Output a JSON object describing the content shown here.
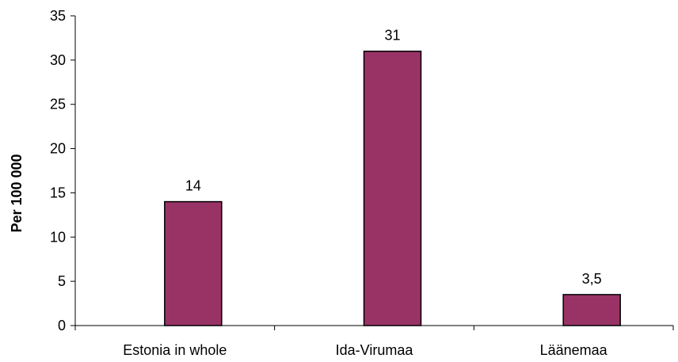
{
  "chart_data": {
    "type": "bar",
    "categories": [
      "Estonia in whole",
      "Ida-Virumaa",
      "Läänemaa"
    ],
    "values": [
      14,
      31,
      3.5
    ],
    "data_labels": [
      "14",
      "31",
      "3,5"
    ],
    "title": "",
    "xlabel": "",
    "ylabel": "Per 100 000",
    "ylim": [
      0,
      35
    ],
    "yticks": [
      0,
      5,
      10,
      15,
      20,
      25,
      30,
      35
    ],
    "grid": false,
    "legend": "none",
    "bar_color": "#993366",
    "bar_outline_color": "#000000"
  }
}
